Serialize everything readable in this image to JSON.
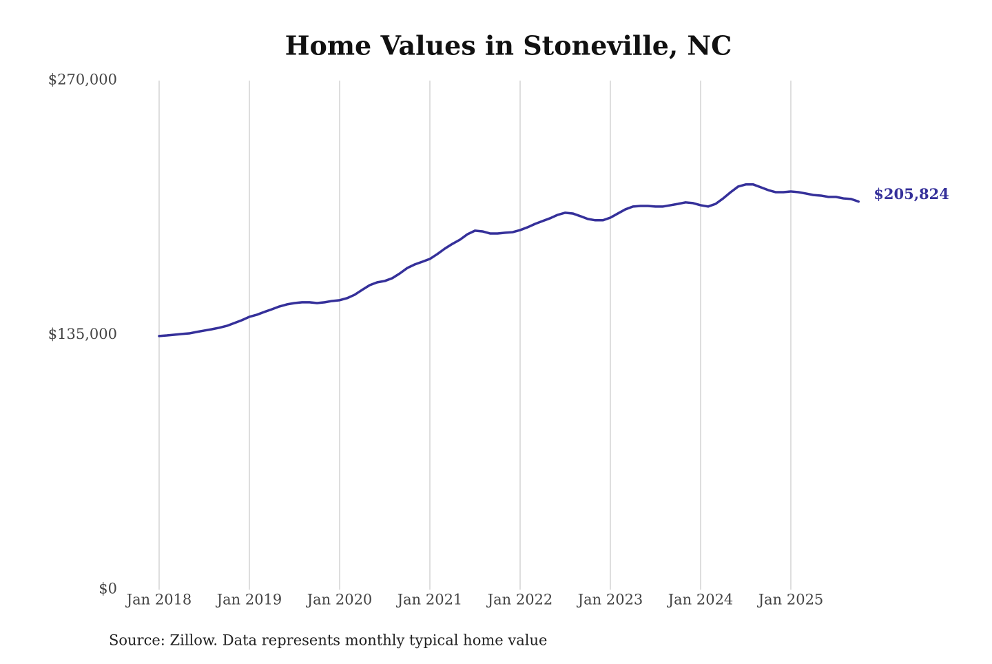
{
  "chart_data": {
    "type": "line",
    "title": "Home Values in Stoneville, NC",
    "source": "Source: Zillow. Data represents monthly typical home value",
    "color": "#35309a",
    "grid": true,
    "ylim": [
      0,
      270000
    ],
    "yticks": [
      {
        "value": 0,
        "label": "$0"
      },
      {
        "value": 135000,
        "label": "$135,000"
      },
      {
        "value": 270000,
        "label": "$270,000"
      }
    ],
    "categories": [
      "Jan 2018",
      null,
      null,
      null,
      null,
      null,
      null,
      null,
      null,
      null,
      null,
      null,
      "Jan 2019",
      null,
      null,
      null,
      null,
      null,
      null,
      null,
      null,
      null,
      null,
      null,
      "Jan 2020",
      null,
      null,
      null,
      null,
      null,
      null,
      null,
      null,
      null,
      null,
      null,
      "Jan 2021",
      null,
      null,
      null,
      null,
      null,
      null,
      null,
      null,
      null,
      null,
      null,
      "Jan 2022",
      null,
      null,
      null,
      null,
      null,
      null,
      null,
      null,
      null,
      null,
      null,
      "Jan 2023",
      null,
      null,
      null,
      null,
      null,
      null,
      null,
      null,
      null,
      null,
      null,
      "Jan 2024",
      null,
      null,
      null,
      null,
      null,
      null,
      null,
      null,
      null,
      null,
      null,
      "Jan 2025",
      null,
      null,
      null,
      null,
      null,
      null,
      null,
      null,
      null
    ],
    "values": [
      134500,
      134800,
      135200,
      135600,
      135900,
      136700,
      137400,
      138100,
      138900,
      139900,
      141400,
      142900,
      144700,
      145800,
      147300,
      148700,
      150200,
      151300,
      152000,
      152400,
      152400,
      152000,
      152400,
      153100,
      153500,
      154600,
      156400,
      159000,
      161500,
      163000,
      163700,
      165200,
      167700,
      170600,
      172500,
      173900,
      175400,
      178000,
      180900,
      183400,
      185600,
      188500,
      190400,
      190000,
      188900,
      188900,
      189300,
      189600,
      190700,
      192200,
      194000,
      195500,
      197000,
      198800,
      199900,
      199500,
      198100,
      196600,
      195900,
      195900,
      197300,
      199500,
      201700,
      203200,
      203500,
      203500,
      203200,
      203200,
      203900,
      204600,
      205400,
      205000,
      203900,
      203200,
      204600,
      207500,
      210800,
      213800,
      214900,
      214900,
      213400,
      211900,
      210800,
      210800,
      211200,
      210800,
      210100,
      209300,
      209000,
      208300,
      208300,
      207500,
      207200,
      205824
    ],
    "value_labels": [
      null,
      null,
      null,
      null,
      null,
      null,
      null,
      null,
      null,
      null,
      null,
      null,
      null,
      null,
      null,
      null,
      null,
      null,
      null,
      null,
      null,
      null,
      null,
      null,
      null,
      null,
      null,
      null,
      null,
      null,
      null,
      null,
      null,
      null,
      null,
      null,
      null,
      null,
      null,
      null,
      null,
      null,
      null,
      null,
      null,
      null,
      null,
      null,
      null,
      null,
      null,
      null,
      null,
      null,
      null,
      null,
      null,
      null,
      null,
      null,
      null,
      null,
      null,
      null,
      null,
      null,
      null,
      null,
      null,
      null,
      null,
      null,
      null,
      null,
      null,
      null,
      null,
      null,
      null,
      null,
      null,
      null,
      null,
      null,
      null,
      null,
      null,
      null,
      null,
      null,
      null,
      null,
      null,
      "$205,824"
    ]
  }
}
